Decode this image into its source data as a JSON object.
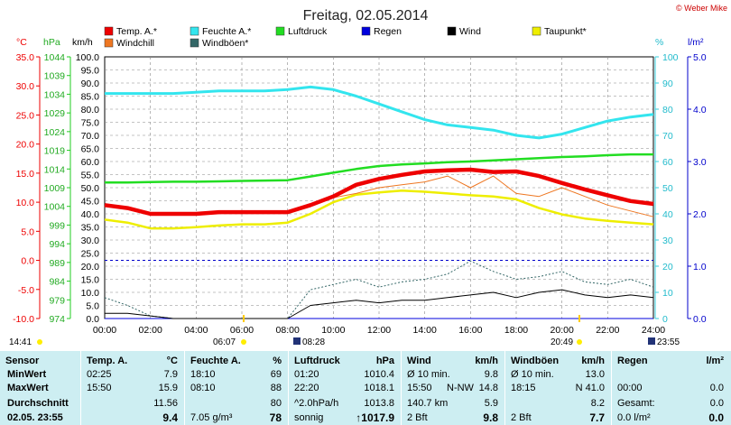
{
  "title": "Freitag, 02.05.2014",
  "copyright": "© Weber Mike",
  "colors": {
    "temp": "#ee0000",
    "humidity": "#33e5ee",
    "pressure": "#22dd22",
    "rain": "#0000dd",
    "wind": "#000000",
    "dewpoint": "#eeee00",
    "windchill": "#ee7722",
    "gust": "#336666"
  },
  "legend": [
    {
      "label": "Temp. A.*",
      "color": "#ee0000"
    },
    {
      "label": "Feuchte A.*",
      "color": "#33e5ee"
    },
    {
      "label": "Luftdruck",
      "color": "#22dd22"
    },
    {
      "label": "Regen",
      "color": "#0000dd"
    },
    {
      "label": "Wind",
      "color": "#000000"
    },
    {
      "label": "Taupunkt*",
      "color": "#eeee00"
    },
    {
      "label": "Windchill",
      "color": "#ee7722"
    },
    {
      "label": "Windböen*",
      "color": "#336666"
    }
  ],
  "axis_units": {
    "temp": "°C",
    "pressure": "hPa",
    "wind": "km/h",
    "humidity": "%",
    "rain": "l/m²"
  },
  "temp_ticks": [
    "35.0",
    "30.0",
    "25.0",
    "20.0",
    "15.0",
    "10.0",
    "5.0",
    "0.0",
    "-5.0",
    "-10.0"
  ],
  "pressure_ticks": [
    "1044",
    "1039",
    "1034",
    "1029",
    "1024",
    "1019",
    "1014",
    "1009",
    "1004",
    "999",
    "994",
    "989",
    "984",
    "979",
    "974"
  ],
  "wind_ticks": [
    "100.0",
    "95.0",
    "90.0",
    "85.0",
    "80.0",
    "75.0",
    "70.0",
    "65.0",
    "60.0",
    "55.0",
    "50.0",
    "45.0",
    "40.0",
    "35.0",
    "30.0",
    "25.0",
    "20.0",
    "15.0",
    "10.0",
    "5.0",
    "0.0"
  ],
  "humidity_ticks": [
    "100",
    "90",
    "80",
    "70",
    "60",
    "50",
    "40",
    "30",
    "20",
    "10",
    "0"
  ],
  "rain_ticks": [
    "5.0",
    "4.0",
    "3.0",
    "2.0",
    "1.0",
    "0.0"
  ],
  "x_ticks": [
    "00:00",
    "02:00",
    "04:00",
    "06:00",
    "08:00",
    "10:00",
    "12:00",
    "14:00",
    "16:00",
    "18:00",
    "20:00",
    "22:00",
    "24:00"
  ],
  "sun_markers": {
    "now_time": "14:41",
    "sunrise": "06:07",
    "moon_rise": "08:28",
    "sunset": "20:49",
    "moon_set": "23:55"
  },
  "chart_data": {
    "type": "line",
    "x": [
      0,
      1,
      2,
      3,
      4,
      5,
      6,
      7,
      8,
      9,
      10,
      11,
      12,
      13,
      14,
      15,
      16,
      17,
      18,
      19,
      20,
      21,
      22,
      23,
      24
    ],
    "xlim": [
      0,
      24
    ],
    "series": [
      {
        "name": "Temp. A.*",
        "axis": "temp",
        "values": [
          9.5,
          9.0,
          8.0,
          8.0,
          8.0,
          8.3,
          8.3,
          8.3,
          8.3,
          9.5,
          11.0,
          13.0,
          14.0,
          14.7,
          15.3,
          15.5,
          15.6,
          15.2,
          15.3,
          14.5,
          13.3,
          12.2,
          11.2,
          10.2,
          9.7
        ]
      },
      {
        "name": "Feuchte A.*",
        "axis": "humidity",
        "values": [
          86,
          86,
          86,
          86,
          86.5,
          87,
          87,
          87,
          87.5,
          88.5,
          87.5,
          85,
          82,
          79,
          76,
          74,
          73,
          72,
          70,
          69,
          70.5,
          73,
          75.5,
          77,
          78
        ]
      },
      {
        "name": "Luftdruck",
        "axis": "pressure",
        "values": [
          1010.4,
          1010.4,
          1010.5,
          1010.6,
          1010.6,
          1010.7,
          1010.8,
          1010.9,
          1011,
          1012,
          1013,
          1014,
          1014.8,
          1015.2,
          1015.5,
          1015.8,
          1016,
          1016.3,
          1016.6,
          1016.9,
          1017.2,
          1017.4,
          1017.7,
          1017.9,
          1017.9
        ]
      },
      {
        "name": "Taupunkt*",
        "axis": "temp",
        "values": [
          7.0,
          6.5,
          5.5,
          5.5,
          5.7,
          6.0,
          6.2,
          6.2,
          6.5,
          8.0,
          10.0,
          11.3,
          11.7,
          12.0,
          11.8,
          11.5,
          11.2,
          11.0,
          10.5,
          9.0,
          7.9,
          7.2,
          6.8,
          6.5,
          6.2
        ]
      },
      {
        "name": "Windchill",
        "axis": "temp",
        "values": [
          9.5,
          9.0,
          8.0,
          8.0,
          8.0,
          8.3,
          8.3,
          8.3,
          8.3,
          9.5,
          10.8,
          11.5,
          12.5,
          13.0,
          13.5,
          14.5,
          12.5,
          14.5,
          11.5,
          11.0,
          12.5,
          11.0,
          9.5,
          8.5,
          7.5
        ]
      },
      {
        "name": "Wind",
        "axis": "wind",
        "values": [
          2,
          2,
          1,
          0,
          0,
          0,
          0,
          0,
          0,
          5,
          6,
          7,
          6,
          7,
          7,
          8,
          9,
          10,
          8,
          10,
          11,
          9,
          8,
          9,
          8
        ]
      },
      {
        "name": "Windböen*",
        "axis": "wind",
        "values": [
          8,
          5,
          1,
          0,
          0,
          0,
          0,
          0,
          0,
          11,
          13,
          15,
          12,
          14,
          15,
          17,
          22,
          18,
          15,
          16,
          18,
          14,
          13,
          15,
          12
        ]
      },
      {
        "name": "Regen",
        "axis": "rain",
        "values": [
          0,
          0,
          0,
          0,
          0,
          0,
          0,
          0,
          0,
          0,
          0,
          0,
          0,
          0,
          0,
          0,
          0,
          0,
          0,
          0,
          0,
          0,
          0,
          0,
          0
        ]
      }
    ]
  },
  "table": {
    "cols": [
      {
        "head": "Sensor",
        "unit": "",
        "rows": [
          "MinWert",
          "MaxWert",
          "Durchschnitt",
          "02.05. 23:55"
        ]
      },
      {
        "head": "Temp. A.",
        "unit": "°C",
        "left": [
          "02:25",
          "15:50",
          "",
          ""
        ],
        "right": [
          "7.9",
          "15.9",
          "11.56",
          "9.4"
        ]
      },
      {
        "head": "Feuchte A.",
        "unit": "%",
        "left": [
          "18:10",
          "08:10",
          "",
          "7.05 g/m³"
        ],
        "right": [
          "69",
          "88",
          "80",
          "78"
        ]
      },
      {
        "head": "Luftdruck",
        "unit": "hPa",
        "left": [
          "01:20",
          "22:20",
          "^2.0hPa/h",
          "sonnig"
        ],
        "right": [
          "1010.4",
          "1018.1",
          "1013.8",
          "↑1017.9"
        ]
      },
      {
        "head": "Wind",
        "unit": "km/h",
        "left": [
          "Ø 10 min.",
          "15:50",
          "140.7 km",
          "2 Bft"
        ],
        "mid": [
          "",
          "N-NW",
          "",
          ""
        ],
        "right": [
          "9.8",
          "14.8",
          "5.9",
          "9.8"
        ]
      },
      {
        "head": "Windböen",
        "unit": "km/h",
        "left": [
          "Ø 10 min.",
          "18:15",
          "",
          "2 Bft"
        ],
        "right": [
          "13.0",
          "N 41.0",
          "8.2",
          "7.7"
        ]
      },
      {
        "head": "Regen",
        "unit": "l/m²",
        "left": [
          "",
          "00:00",
          "Gesamt:",
          "0.0 l/m²"
        ],
        "right": [
          "",
          "0.0",
          "0.0",
          "0.0"
        ]
      }
    ]
  }
}
